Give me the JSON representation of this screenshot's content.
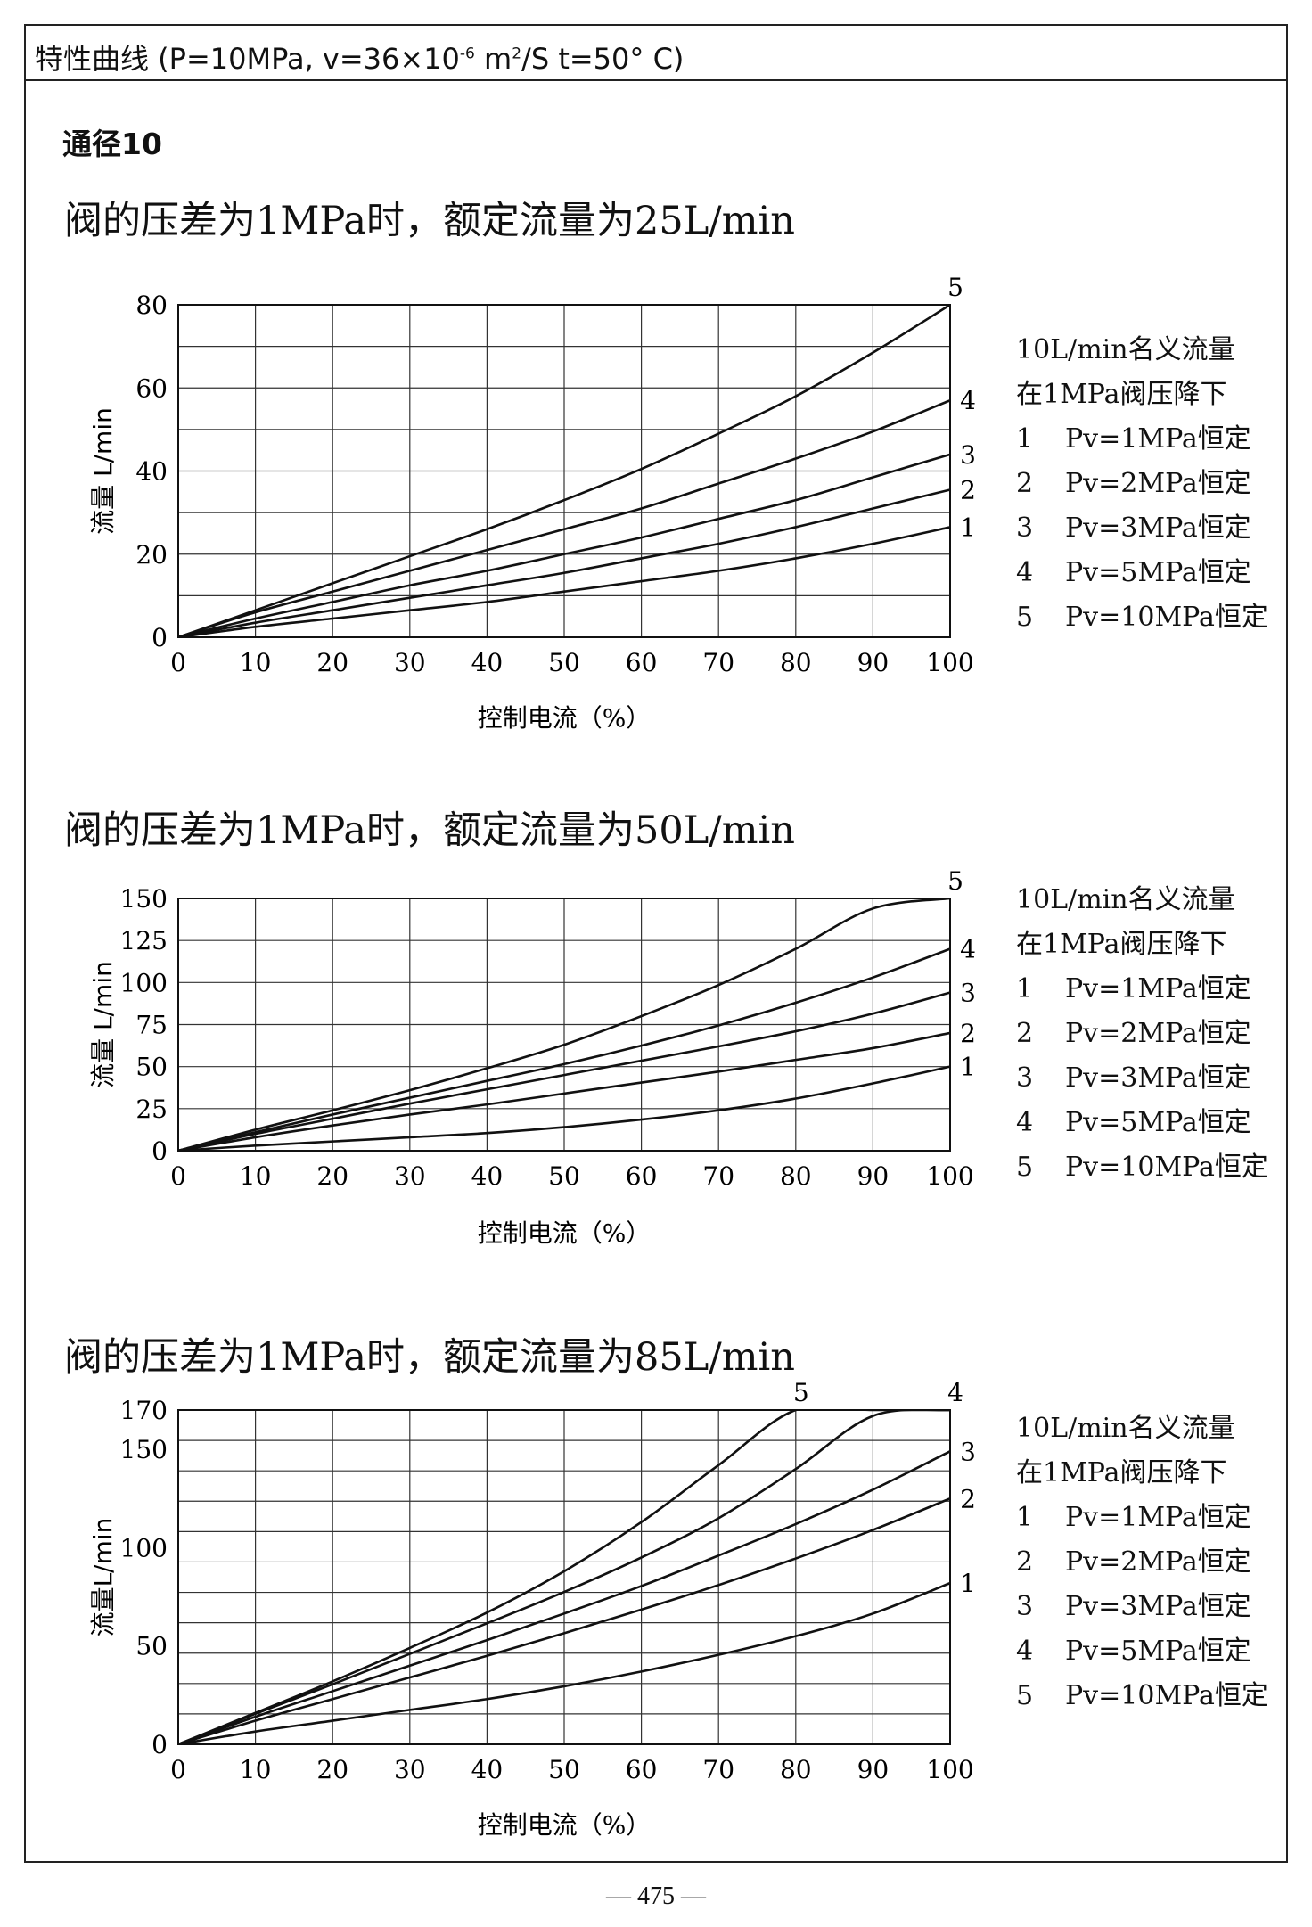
{
  "header": {
    "text_main": "特性曲线 (P=10MPa, v=36×10",
    "text_sup1": "-6",
    "text_mid": " m",
    "text_sup2": "2",
    "text_end": "/S t=50° C)"
  },
  "section_title": "通径10",
  "page_number": "— 475 —",
  "legend": {
    "heading_1": "10L/min名义流量",
    "heading_2": "在1MPa阀压降下",
    "items": [
      {
        "num": "1",
        "label": "Pv=1MPa恒定"
      },
      {
        "num": "2",
        "label": "Pv=2MPa恒定"
      },
      {
        "num": "3",
        "label": "Pv=3MPa恒定"
      },
      {
        "num": "4",
        "label": "Pv=5MPa恒定"
      },
      {
        "num": "5",
        "label": "Pv=10MPa恒定"
      }
    ]
  },
  "chart_data": [
    {
      "type": "line",
      "title": "阀的压差为1MPa时，额定流量为25L/min",
      "xlabel": "控制电流（%）",
      "ylabel": "流量 L/min",
      "xlim": [
        0,
        100
      ],
      "ylim": [
        0,
        80
      ],
      "xticks": [
        0,
        10,
        20,
        30,
        40,
        50,
        60,
        70,
        80,
        90,
        100
      ],
      "yticks": [
        0,
        20,
        40,
        60,
        80
      ],
      "grid": true,
      "x": [
        0,
        10,
        20,
        30,
        40,
        50,
        60,
        70,
        80,
        90,
        100
      ],
      "series": [
        {
          "name": "1",
          "values": [
            0,
            2.5,
            4.5,
            6.5,
            8.5,
            11,
            13.5,
            16,
            19,
            22.5,
            26.5
          ]
        },
        {
          "name": "2",
          "values": [
            0,
            3.5,
            6.5,
            9.5,
            12.5,
            15.5,
            19,
            22.5,
            26.5,
            31,
            35.5
          ]
        },
        {
          "name": "3",
          "values": [
            0,
            4.5,
            8.5,
            12.5,
            16,
            20,
            24,
            28.5,
            33,
            38.5,
            44
          ]
        },
        {
          "name": "4",
          "values": [
            0,
            6,
            11,
            16,
            21,
            26,
            31,
            37,
            43,
            49.5,
            57
          ]
        },
        {
          "name": "5",
          "values": [
            0,
            6.5,
            13,
            19.5,
            26,
            33,
            40.5,
            49,
            58,
            68.5,
            80
          ]
        }
      ]
    },
    {
      "type": "line",
      "title": "阀的压差为1MPa时，额定流量为50L/min",
      "xlabel": "控制电流（%）",
      "ylabel": "流量 L/min",
      "xlim": [
        0,
        100
      ],
      "ylim": [
        0,
        150
      ],
      "xticks": [
        0,
        10,
        20,
        30,
        40,
        50,
        60,
        70,
        80,
        90,
        100
      ],
      "yticks": [
        0,
        25,
        50,
        75,
        100,
        125,
        150
      ],
      "grid": true,
      "x": [
        0,
        10,
        20,
        30,
        40,
        50,
        60,
        70,
        80,
        90,
        100
      ],
      "series": [
        {
          "name": "1",
          "values": [
            0,
            3,
            5.5,
            8,
            10.5,
            14,
            18.5,
            24,
            31,
            40,
            50
          ]
        },
        {
          "name": "2",
          "values": [
            0,
            8,
            15,
            21.5,
            27.5,
            34,
            40.5,
            47,
            54,
            61,
            70
          ]
        },
        {
          "name": "3",
          "values": [
            0,
            10,
            19,
            28,
            36.5,
            45,
            53.5,
            62,
            71,
            81.5,
            94
          ]
        },
        {
          "name": "4",
          "values": [
            0,
            11,
            21.5,
            31.5,
            41.5,
            51.5,
            62.5,
            74.5,
            88,
            103,
            120
          ]
        },
        {
          "name": "5",
          "values": [
            0,
            12.5,
            24,
            36,
            49,
            63,
            80,
            98.5,
            120,
            144,
            150
          ]
        }
      ]
    },
    {
      "type": "line",
      "title": "阀的压差为1MPa时，额定流量为85L/min",
      "xlabel": "控制电流（%）",
      "ylabel": "流量L/min",
      "xlim": [
        0,
        100
      ],
      "ylim": [
        0,
        170
      ],
      "xticks": [
        0,
        10,
        20,
        30,
        40,
        50,
        60,
        70,
        80,
        90,
        100
      ],
      "yticks": [
        0,
        50,
        100,
        150,
        170
      ],
      "grid": true,
      "x": [
        0,
        10,
        20,
        30,
        40,
        50,
        60,
        70,
        80,
        90,
        100
      ],
      "series": [
        {
          "name": "1",
          "values": [
            0,
            6.5,
            12,
            17.5,
            23,
            29.5,
            37,
            45.5,
            55,
            66.5,
            82
          ]
        },
        {
          "name": "2",
          "values": [
            0,
            12,
            23,
            34,
            45,
            56.5,
            68.5,
            81,
            94.5,
            109,
            125
          ]
        },
        {
          "name": "3",
          "values": [
            0,
            14,
            27,
            40,
            53,
            66.5,
            80.5,
            96,
            112,
            129.5,
            149
          ]
        },
        {
          "name": "4",
          "values": [
            0,
            15.5,
            30.5,
            46,
            61.5,
            77.5,
            95,
            115,
            140,
            167,
            170
          ]
        },
        {
          "name": "5",
          "values": [
            0,
            16,
            32,
            49,
            67,
            88,
            113,
            142,
            170,
            170,
            170
          ]
        }
      ]
    }
  ]
}
